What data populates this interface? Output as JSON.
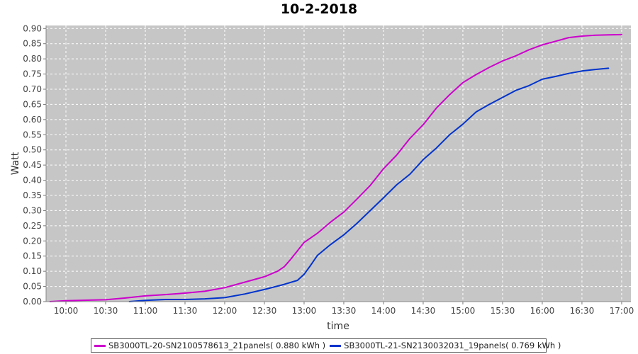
{
  "chart_data": {
    "type": "line",
    "title": "10-2-2018",
    "xlabel": "time",
    "ylabel": "Watt",
    "x_ticks": [
      "10:00",
      "10:30",
      "11:00",
      "11:30",
      "12:00",
      "12:30",
      "13:00",
      "13:30",
      "14:00",
      "14:30",
      "15:00",
      "15:30",
      "16:00",
      "16:30",
      "17:00"
    ],
    "y_ticks": [
      "0.00",
      "0.05",
      "0.10",
      "0.15",
      "0.20",
      "0.25",
      "0.30",
      "0.35",
      "0.40",
      "0.45",
      "0.50",
      "0.55",
      "0.60",
      "0.65",
      "0.70",
      "0.75",
      "0.80",
      "0.85",
      "0.90"
    ],
    "xlim": [
      "09:45",
      "17:07"
    ],
    "ylim": [
      0,
      0.91
    ],
    "grid": true,
    "legend_position": "bottom",
    "series": [
      {
        "name": "SB3000TL-20-SN2100578613_21panels( 0.880 kWh )",
        "color": "#cc00cc",
        "x": [
          "09:48",
          "10:00",
          "10:30",
          "10:45",
          "11:00",
          "11:15",
          "11:30",
          "11:45",
          "12:00",
          "12:15",
          "12:30",
          "12:40",
          "12:45",
          "12:50",
          "13:00",
          "13:10",
          "13:20",
          "13:30",
          "13:40",
          "13:50",
          "14:00",
          "14:10",
          "14:20",
          "14:30",
          "14:40",
          "14:50",
          "15:00",
          "15:10",
          "15:20",
          "15:30",
          "15:40",
          "15:50",
          "16:00",
          "16:10",
          "16:20",
          "16:30",
          "16:40",
          "16:50",
          "17:00"
        ],
        "y": [
          0.0,
          0.003,
          0.006,
          0.012,
          0.019,
          0.023,
          0.028,
          0.034,
          0.046,
          0.064,
          0.082,
          0.1,
          0.115,
          0.14,
          0.195,
          0.225,
          0.262,
          0.295,
          0.338,
          0.383,
          0.438,
          0.483,
          0.538,
          0.583,
          0.638,
          0.682,
          0.722,
          0.748,
          0.772,
          0.793,
          0.81,
          0.83,
          0.846,
          0.858,
          0.87,
          0.875,
          0.878,
          0.879,
          0.88
        ]
      },
      {
        "name": "SB3000TL-21-SN2130032031_19panels( 0.769 kWh )",
        "color": "#0033cc",
        "x": [
          "10:48",
          "11:00",
          "11:15",
          "11:30",
          "11:45",
          "12:00",
          "12:15",
          "12:30",
          "12:45",
          "12:55",
          "13:00",
          "13:05",
          "13:10",
          "13:20",
          "13:30",
          "13:40",
          "13:50",
          "14:00",
          "14:10",
          "14:20",
          "14:30",
          "14:40",
          "14:50",
          "15:00",
          "15:10",
          "15:20",
          "15:30",
          "15:40",
          "15:50",
          "16:00",
          "16:10",
          "16:20",
          "16:30",
          "16:40",
          "16:50"
        ],
        "y": [
          0.0,
          0.004,
          0.007,
          0.007,
          0.009,
          0.013,
          0.025,
          0.04,
          0.057,
          0.07,
          0.09,
          0.12,
          0.152,
          0.188,
          0.22,
          0.258,
          0.3,
          0.342,
          0.385,
          0.42,
          0.468,
          0.506,
          0.55,
          0.585,
          0.625,
          0.65,
          0.673,
          0.696,
          0.712,
          0.733,
          0.742,
          0.752,
          0.76,
          0.765,
          0.769
        ]
      }
    ]
  }
}
